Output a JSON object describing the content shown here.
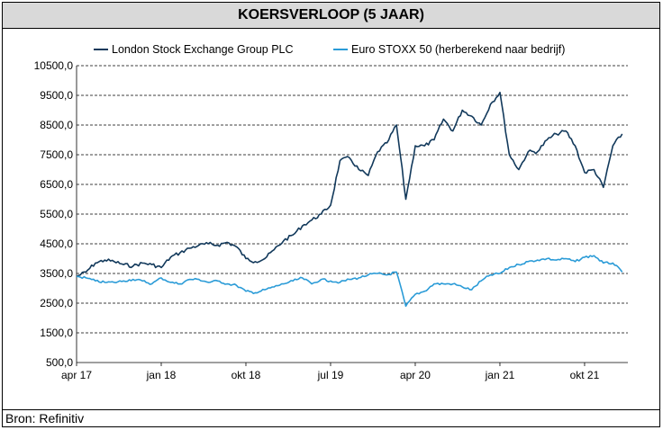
{
  "title": "KOERSVERLOOP (5 JAAR)",
  "source": "Bron: Refinitiv",
  "colors": {
    "lseg": "#12395b",
    "stoxx": "#2a9bd7",
    "grid": "#000000"
  },
  "chart_data": {
    "type": "line",
    "title": "KOERSVERLOOP (5 JAAR)",
    "xlabel": "",
    "ylabel": "",
    "ylim": [
      500,
      10500
    ],
    "y_ticks": [
      "500,0",
      "1500,0",
      "2500,0",
      "3500,0",
      "4500,0",
      "5500,0",
      "6500,0",
      "7500,0",
      "8500,0",
      "9500,0",
      "10500,0"
    ],
    "y_tick_values": [
      500,
      1500,
      2500,
      3500,
      4500,
      5500,
      6500,
      7500,
      8500,
      9500,
      10500
    ],
    "x_ticks": [
      "apr 17",
      "jan 18",
      "okt 18",
      "jul 19",
      "apr 20",
      "jan 21",
      "okt 21"
    ],
    "x_tick_values": [
      "2017-04",
      "2018-01",
      "2018-10",
      "2019-07",
      "2020-04",
      "2021-01",
      "2021-10"
    ],
    "grid": "horizontal dashed",
    "legend_position": "top",
    "series": [
      {
        "name": "London Stock Exchange Group PLC",
        "color": "#12395b",
        "x": [
          "2017-04",
          "2017-05",
          "2017-06",
          "2017-07",
          "2017-08",
          "2017-09",
          "2017-10",
          "2017-11",
          "2017-12",
          "2018-01",
          "2018-02",
          "2018-03",
          "2018-04",
          "2018-05",
          "2018-06",
          "2018-07",
          "2018-08",
          "2018-09",
          "2018-10",
          "2018-11",
          "2018-12",
          "2019-01",
          "2019-02",
          "2019-03",
          "2019-04",
          "2019-05",
          "2019-06",
          "2019-07",
          "2019-08",
          "2019-09",
          "2019-10",
          "2019-11",
          "2019-12",
          "2020-01",
          "2020-02",
          "2020-03",
          "2020-04",
          "2020-05",
          "2020-06",
          "2020-07",
          "2020-08",
          "2020-09",
          "2020-10",
          "2020-11",
          "2020-12",
          "2021-01",
          "2021-02",
          "2021-03",
          "2021-04",
          "2021-05",
          "2021-06",
          "2021-07",
          "2021-08",
          "2021-09",
          "2021-10",
          "2021-11",
          "2021-12",
          "2022-01",
          "2022-02"
        ],
        "values": [
          3400,
          3550,
          3850,
          3950,
          3900,
          3800,
          3750,
          3850,
          3800,
          3700,
          4050,
          4200,
          4350,
          4450,
          4500,
          4450,
          4550,
          4400,
          4000,
          3900,
          4000,
          4300,
          4600,
          4800,
          5100,
          5300,
          5500,
          5800,
          7300,
          7400,
          7000,
          6800,
          7600,
          7900,
          8500,
          6000,
          7800,
          7800,
          8000,
          8700,
          8300,
          9000,
          8800,
          8500,
          9200,
          9600,
          7500,
          7000,
          7600,
          7600,
          8000,
          8200,
          8300,
          7800,
          6900,
          7000,
          6400,
          7800,
          8200
        ]
      },
      {
        "name": "Euro STOXX 50 (herberekend naar bedrijf)",
        "color": "#2a9bd7",
        "x": [
          "2017-04",
          "2017-05",
          "2017-06",
          "2017-07",
          "2017-08",
          "2017-09",
          "2017-10",
          "2017-11",
          "2017-12",
          "2018-01",
          "2018-02",
          "2018-03",
          "2018-04",
          "2018-05",
          "2018-06",
          "2018-07",
          "2018-08",
          "2018-09",
          "2018-10",
          "2018-11",
          "2018-12",
          "2019-01",
          "2019-02",
          "2019-03",
          "2019-04",
          "2019-05",
          "2019-06",
          "2019-07",
          "2019-08",
          "2019-09",
          "2019-10",
          "2019-11",
          "2019-12",
          "2020-01",
          "2020-02",
          "2020-03",
          "2020-04",
          "2020-05",
          "2020-06",
          "2020-07",
          "2020-08",
          "2020-09",
          "2020-10",
          "2020-11",
          "2020-12",
          "2021-01",
          "2021-02",
          "2021-03",
          "2021-04",
          "2021-05",
          "2021-06",
          "2021-07",
          "2021-08",
          "2021-09",
          "2021-10",
          "2021-11",
          "2021-12",
          "2022-01",
          "2022-02"
        ],
        "values": [
          3400,
          3350,
          3250,
          3200,
          3200,
          3250,
          3300,
          3250,
          3150,
          3350,
          3200,
          3150,
          3300,
          3300,
          3200,
          3250,
          3150,
          3100,
          2900,
          2850,
          2950,
          3050,
          3150,
          3250,
          3350,
          3150,
          3300,
          3250,
          3200,
          3300,
          3350,
          3450,
          3500,
          3450,
          3550,
          2400,
          2800,
          2900,
          3150,
          3150,
          3150,
          3050,
          2950,
          3250,
          3450,
          3500,
          3700,
          3800,
          3900,
          3950,
          4000,
          3950,
          4000,
          3900,
          4050,
          4100,
          3850,
          3850,
          3550
        ]
      }
    ]
  }
}
